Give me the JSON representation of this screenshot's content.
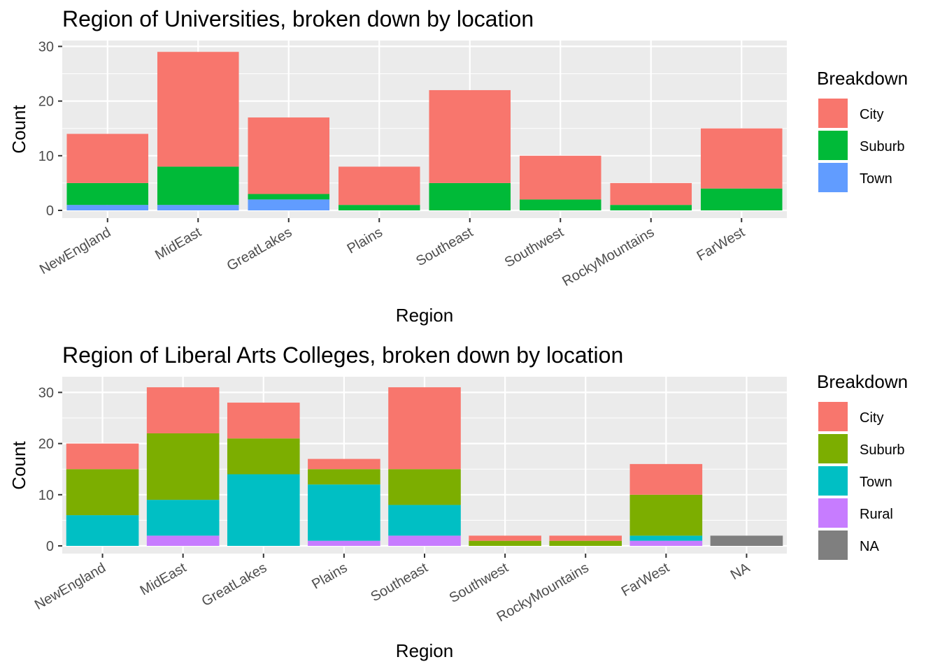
{
  "chart_data": [
    {
      "type": "bar",
      "stacked": true,
      "title": "Region of Universities, broken down by location",
      "xlabel": "Region",
      "ylabel": "Count",
      "ylim": [
        0,
        30
      ],
      "yticks": [
        0,
        10,
        20,
        30
      ],
      "grid": true,
      "legend_position": "right",
      "legend_title": "Breakdown",
      "categories": [
        "NewEngland",
        "MidEast",
        "GreatLakes",
        "Plains",
        "Southeast",
        "Southwest",
        "RockyMountains",
        "FarWest"
      ],
      "series": [
        {
          "name": "City",
          "color": "#F8766D",
          "values": [
            9,
            21,
            14,
            7,
            17,
            8,
            4,
            11
          ]
        },
        {
          "name": "Suburb",
          "color": "#00BA38",
          "values": [
            4,
            7,
            1,
            1,
            5,
            2,
            1,
            4
          ]
        },
        {
          "name": "Town",
          "color": "#619CFF",
          "values": [
            1,
            1,
            2,
            0,
            0,
            0,
            0,
            0
          ]
        }
      ]
    },
    {
      "type": "bar",
      "stacked": true,
      "title": "Region of Liberal Arts Colleges, broken down by location",
      "xlabel": "Region",
      "ylabel": "Count",
      "ylim": [
        0,
        32
      ],
      "yticks": [
        0,
        10,
        20,
        30
      ],
      "grid": true,
      "legend_position": "right",
      "legend_title": "Breakdown",
      "categories": [
        "NewEngland",
        "MidEast",
        "GreatLakes",
        "Plains",
        "Southeast",
        "Southwest",
        "RockyMountains",
        "FarWest",
        "NA"
      ],
      "series": [
        {
          "name": "City",
          "color": "#F8766D",
          "values": [
            5,
            9,
            7,
            2,
            16,
            1,
            1,
            6,
            0
          ]
        },
        {
          "name": "Suburb",
          "color": "#7CAE00",
          "values": [
            9,
            13,
            7,
            3,
            7,
            1,
            1,
            8,
            0
          ]
        },
        {
          "name": "Town",
          "color": "#00BFC4",
          "values": [
            6,
            7,
            14,
            11,
            6,
            0,
            0,
            1,
            0
          ]
        },
        {
          "name": "Rural",
          "color": "#C77CFF",
          "values": [
            0,
            2,
            0,
            1,
            2,
            0,
            0,
            1,
            0
          ]
        },
        {
          "name": "NA",
          "color": "#7F7F7F",
          "values": [
            0,
            0,
            0,
            0,
            0,
            0,
            0,
            0,
            2
          ]
        }
      ]
    }
  ]
}
